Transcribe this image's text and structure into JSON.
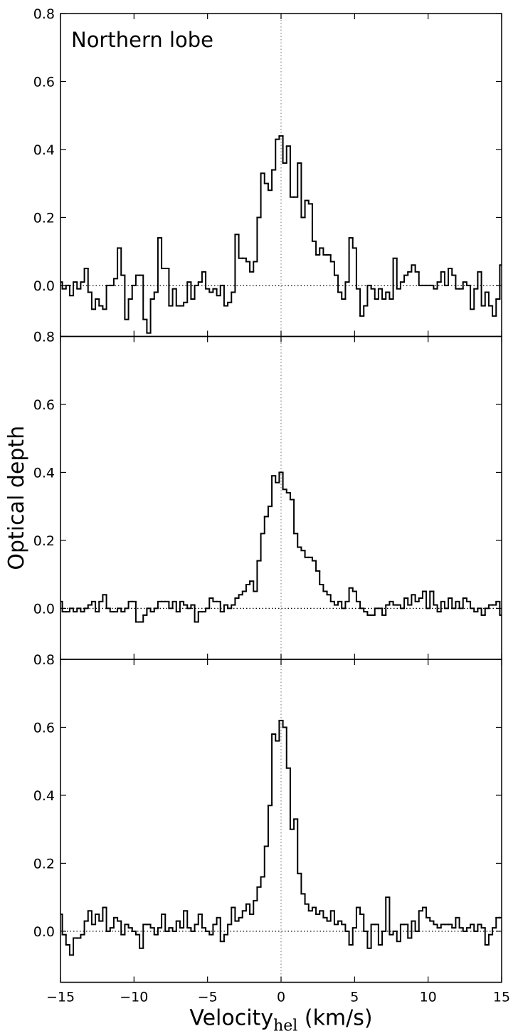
{
  "chart_data": [
    {
      "type": "line",
      "step": true,
      "annotation": "Northern lobe",
      "color": "#000000",
      "vline": 0,
      "hline": 0,
      "xlim": [
        -15,
        15
      ],
      "ylim": [
        -0.15,
        0.8
      ],
      "xticks": [
        -15,
        -10,
        -5,
        0,
        5,
        10,
        15
      ],
      "yticks": [
        {
          "value": 0,
          "label": "0.0"
        },
        0.2,
        0.4,
        0.6,
        0.8
      ],
      "x": [
        -15,
        -14.75,
        -14.5,
        -14.25,
        -14,
        -13.75,
        -13.5,
        -13.25,
        -13,
        -12.75,
        -12.5,
        -12.25,
        -12,
        -11.75,
        -11.5,
        -11.25,
        -11,
        -10.75,
        -10.5,
        -10.25,
        -10,
        -9.75,
        -9.5,
        -9.25,
        -9,
        -8.75,
        -8.5,
        -8.25,
        -8,
        -7.75,
        -7.5,
        -7.25,
        -7,
        -6.75,
        -6.5,
        -6.25,
        -6,
        -5.75,
        -5.5,
        -5.25,
        -5,
        -4.75,
        -4.5,
        -4.25,
        -4,
        -3.75,
        -3.5,
        -3.25,
        -3,
        -2.75,
        -2.5,
        -2.25,
        -2,
        -1.75,
        -1.5,
        -1.25,
        -1,
        -0.75,
        -0.5,
        -0.25,
        0,
        0.25,
        0.5,
        0.75,
        1,
        1.25,
        1.5,
        1.75,
        2,
        2.25,
        2.5,
        2.75,
        3,
        3.25,
        3.5,
        3.75,
        4,
        4.25,
        4.5,
        4.75,
        5,
        5.25,
        5.5,
        5.75,
        6,
        6.25,
        6.5,
        6.75,
        7,
        7.25,
        7.5,
        7.75,
        8,
        8.25,
        8.5,
        8.75,
        9,
        9.25,
        9.5,
        9.75,
        10,
        10.25,
        10.5,
        10.75,
        11,
        11.25,
        11.5,
        11.75,
        12,
        12.25,
        12.5,
        12.75,
        13,
        13.25,
        13.5,
        13.75,
        14,
        14.25,
        14.5,
        14.75,
        15
      ],
      "values": [
        0.01,
        -0.01,
        0.0,
        -0.03,
        0.01,
        -0.01,
        0.01,
        0.05,
        -0.02,
        -0.07,
        -0.04,
        -0.06,
        -0.07,
        0.0,
        0.0,
        0.02,
        0.11,
        0.03,
        -0.1,
        -0.04,
        0.0,
        0.03,
        0.03,
        -0.1,
        -0.14,
        -0.04,
        -0.02,
        0.14,
        0.05,
        0.05,
        -0.06,
        -0.01,
        -0.06,
        -0.06,
        -0.05,
        0.01,
        -0.04,
        0.0,
        0.01,
        0.04,
        -0.01,
        -0.02,
        -0.01,
        -0.03,
        0.0,
        -0.06,
        -0.05,
        -0.02,
        0.15,
        0.08,
        0.08,
        0.07,
        0.04,
        0.07,
        0.2,
        0.33,
        0.3,
        0.28,
        0.34,
        0.43,
        0.44,
        0.36,
        0.41,
        0.26,
        0.26,
        0.36,
        0.2,
        0.25,
        0.24,
        0.13,
        0.09,
        0.11,
        0.09,
        0.09,
        0.07,
        0.03,
        -0.02,
        -0.04,
        0.01,
        0.14,
        0.11,
        -0.01,
        -0.09,
        -0.06,
        0.0,
        -0.01,
        -0.04,
        -0.01,
        -0.04,
        -0.02,
        -0.04,
        0.08,
        -0.01,
        0.01,
        0.03,
        0.04,
        0.06,
        0.04,
        0.0,
        0.0,
        0.0,
        0.0,
        -0.01,
        0.01,
        0.04,
        0.0,
        0.05,
        0.03,
        -0.01,
        -0.01,
        0.01,
        0.0,
        -0.07,
        -0.01,
        0.04,
        -0.06,
        -0.02,
        -0.06,
        -0.09,
        -0.04,
        0.06
      ]
    },
    {
      "type": "line",
      "step": true,
      "ylabel": "Optical depth",
      "color": "#000000",
      "vline": 0,
      "hline": 0,
      "xlim": [
        -15,
        15
      ],
      "ylim": [
        -0.15,
        0.8
      ],
      "xticks": [
        -15,
        -10,
        -5,
        0,
        5,
        10,
        15
      ],
      "yticks": [
        {
          "value": 0,
          "label": "0.0"
        },
        0.2,
        0.4,
        0.6,
        0.8
      ],
      "x": [
        -15,
        -14.75,
        -14.5,
        -14.25,
        -14,
        -13.75,
        -13.5,
        -13.25,
        -13,
        -12.75,
        -12.5,
        -12.25,
        -12,
        -11.75,
        -11.5,
        -11.25,
        -11,
        -10.75,
        -10.5,
        -10.25,
        -10,
        -9.75,
        -9.5,
        -9.25,
        -9,
        -8.75,
        -8.5,
        -8.25,
        -8,
        -7.75,
        -7.5,
        -7.25,
        -7,
        -6.75,
        -6.5,
        -6.25,
        -6,
        -5.75,
        -5.5,
        -5.25,
        -5,
        -4.75,
        -4.5,
        -4.25,
        -4,
        -3.75,
        -3.5,
        -3.25,
        -3,
        -2.75,
        -2.5,
        -2.25,
        -2,
        -1.75,
        -1.5,
        -1.25,
        -1,
        -0.75,
        -0.5,
        -0.25,
        0,
        0.25,
        0.5,
        0.75,
        1,
        1.25,
        1.5,
        1.75,
        2,
        2.25,
        2.5,
        2.75,
        3,
        3.25,
        3.5,
        3.75,
        4,
        4.25,
        4.5,
        4.75,
        5,
        5.25,
        5.5,
        5.75,
        6,
        6.25,
        6.5,
        6.75,
        7,
        7.25,
        7.5,
        7.75,
        8,
        8.25,
        8.5,
        8.75,
        9,
        9.25,
        9.5,
        9.75,
        10,
        10.25,
        10.5,
        10.75,
        11,
        11.25,
        11.5,
        11.75,
        12,
        12.25,
        12.5,
        12.75,
        13,
        13.25,
        13.5,
        13.75,
        14,
        14.25,
        14.5,
        14.75,
        15
      ],
      "values": [
        0.02,
        -0.01,
        -0.01,
        0.0,
        -0.01,
        0.0,
        -0.01,
        0.0,
        0.01,
        0.02,
        -0.01,
        0.02,
        0.04,
        0.0,
        -0.01,
        -0.01,
        0.0,
        -0.01,
        0.0,
        0.02,
        0.02,
        -0.04,
        -0.04,
        -0.02,
        0.0,
        -0.01,
        0.0,
        0.02,
        0.02,
        0.02,
        0.0,
        0.02,
        -0.01,
        0.02,
        0.01,
        0.0,
        0.01,
        -0.04,
        -0.01,
        -0.01,
        0.0,
        0.03,
        0.02,
        0.02,
        -0.01,
        0.01,
        0.0,
        0.01,
        0.03,
        0.04,
        0.05,
        0.07,
        0.08,
        0.05,
        0.14,
        0.22,
        0.27,
        0.3,
        0.39,
        0.37,
        0.4,
        0.35,
        0.34,
        0.32,
        0.22,
        0.18,
        0.17,
        0.15,
        0.15,
        0.14,
        0.11,
        0.07,
        0.05,
        0.04,
        0.02,
        0.01,
        0.02,
        0.0,
        0.02,
        0.06,
        0.05,
        0.02,
        0.0,
        -0.01,
        -0.02,
        -0.02,
        0.0,
        0.0,
        -0.02,
        0.01,
        0.02,
        0.01,
        0.01,
        0.0,
        0.03,
        0.01,
        0.04,
        0.02,
        0.03,
        0.05,
        0.0,
        0.05,
        0.01,
        -0.01,
        0.02,
        0.0,
        0.03,
        0.0,
        0.02,
        0.0,
        0.03,
        0.02,
        0.0,
        -0.01,
        0.0,
        -0.02,
        0.0,
        0.01,
        0.01,
        0.02,
        -0.02
      ]
    },
    {
      "type": "line",
      "step": true,
      "xlabel": "Velocity",
      "xlabel_subscript": "hel",
      "xlabel_unit": "(km/s)",
      "color": "#000000",
      "vline": 0,
      "hline": 0,
      "xlim": [
        -15,
        15
      ],
      "ylim": [
        -0.15,
        0.8
      ],
      "xticks": [
        {
          "value": -15,
          "label": "−15"
        },
        {
          "value": -10,
          "label": "−10"
        },
        {
          "value": -5,
          "label": "−5"
        },
        0,
        5,
        10,
        15
      ],
      "yticks": [
        {
          "value": 0,
          "label": "0.0"
        },
        0.2,
        0.4,
        0.6,
        0.8
      ],
      "x": [
        -15,
        -14.75,
        -14.5,
        -14.25,
        -14,
        -13.75,
        -13.5,
        -13.25,
        -13,
        -12.75,
        -12.5,
        -12.25,
        -12,
        -11.75,
        -11.5,
        -11.25,
        -11,
        -10.75,
        -10.5,
        -10.25,
        -10,
        -9.75,
        -9.5,
        -9.25,
        -9,
        -8.75,
        -8.5,
        -8.25,
        -8,
        -7.75,
        -7.5,
        -7.25,
        -7,
        -6.75,
        -6.5,
        -6.25,
        -6,
        -5.75,
        -5.5,
        -5.25,
        -5,
        -4.75,
        -4.5,
        -4.25,
        -4,
        -3.75,
        -3.5,
        -3.25,
        -3,
        -2.75,
        -2.5,
        -2.25,
        -2,
        -1.75,
        -1.5,
        -1.25,
        -1,
        -0.75,
        -0.5,
        -0.25,
        0,
        0.25,
        0.5,
        0.75,
        1,
        1.25,
        1.5,
        1.75,
        2,
        2.25,
        2.5,
        2.75,
        3,
        3.25,
        3.5,
        3.75,
        4,
        4.25,
        4.5,
        4.75,
        5,
        5.25,
        5.5,
        5.75,
        6,
        6.25,
        6.5,
        6.75,
        7,
        7.25,
        7.5,
        7.75,
        8,
        8.25,
        8.5,
        8.75,
        9,
        9.25,
        9.5,
        9.75,
        10,
        10.25,
        10.5,
        10.75,
        11,
        11.25,
        11.5,
        11.75,
        12,
        12.25,
        12.5,
        12.75,
        13,
        13.25,
        13.5,
        13.75,
        14,
        14.25,
        14.5,
        14.75,
        15
      ],
      "values": [
        0.05,
        -0.01,
        -0.04,
        -0.07,
        -0.02,
        -0.02,
        -0.01,
        0.03,
        0.06,
        0.02,
        0.05,
        0.03,
        0.07,
        0.0,
        0.01,
        0.04,
        0.03,
        -0.01,
        0.02,
        0.01,
        0.0,
        -0.01,
        -0.05,
        0.02,
        0.02,
        0.01,
        -0.01,
        0.01,
        0.05,
        0.0,
        0.01,
        0.0,
        0.03,
        0.01,
        0.06,
        0.01,
        0.0,
        0.02,
        0.05,
        0.01,
        0.0,
        -0.01,
        0.02,
        0.04,
        -0.03,
        -0.01,
        0.02,
        0.07,
        0.03,
        0.04,
        0.06,
        0.08,
        0.05,
        0.09,
        0.13,
        0.16,
        0.25,
        0.37,
        0.58,
        0.56,
        0.62,
        0.6,
        0.48,
        0.3,
        0.33,
        0.17,
        0.11,
        0.08,
        0.06,
        0.07,
        0.05,
        0.06,
        0.04,
        0.03,
        0.06,
        0.02,
        0.03,
        0.02,
        0.0,
        -0.04,
        0.01,
        0.07,
        0.05,
        0.0,
        -0.05,
        0.02,
        0.02,
        -0.04,
        0.0,
        0.1,
        -0.01,
        0.0,
        -0.03,
        0.02,
        0.02,
        -0.02,
        0.03,
        0.0,
        0.06,
        0.07,
        0.04,
        0.03,
        0.02,
        0.01,
        0.02,
        0.02,
        0.02,
        0.01,
        0.04,
        0.01,
        0.0,
        0.01,
        0.02,
        0.0,
        0.02,
        0.01,
        -0.04,
        -0.01,
        0.01,
        0.04,
        0.04
      ]
    }
  ]
}
